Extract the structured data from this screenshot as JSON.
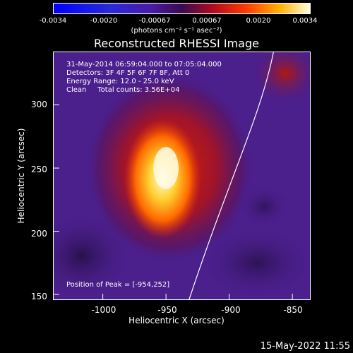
{
  "colorbar": {
    "ticks": [
      "-0.0034",
      "-0.0020",
      "-0.00067",
      "0.00067",
      "0.0020",
      "0.0034"
    ],
    "unit_label": "(photons cm⁻² s⁻¹ asec⁻²)"
  },
  "title": "Reconstructed RHESSI Image",
  "info": {
    "time": "31-May-2014 06:59:04.000 to 07:05:04.000",
    "detectors": "Detectors: 3F 4F 5F 6F 7F 8F, Att 0",
    "energy": "Energy Range: 12.0 - 25.0 keV",
    "clean": "Clean     Total counts: 3.56E+04"
  },
  "peak_label": "Position of Peak = [-954,252]",
  "x_axis": {
    "label": "Heliocentric X (arcsec)",
    "ticks": [
      "-1000",
      "-950",
      "-900",
      "-850"
    ]
  },
  "y_axis": {
    "label": "Heliocentric Y (arcsec)",
    "ticks": [
      "300",
      "250",
      "200",
      "150"
    ]
  },
  "timestamp": "15-May-2022 11:55",
  "colors": {
    "background": "#000000",
    "map_low": "#4b1f8c",
    "map_mid": "#c01a0a",
    "map_high": "#fff27a",
    "limb_line": "#ffffff"
  }
}
